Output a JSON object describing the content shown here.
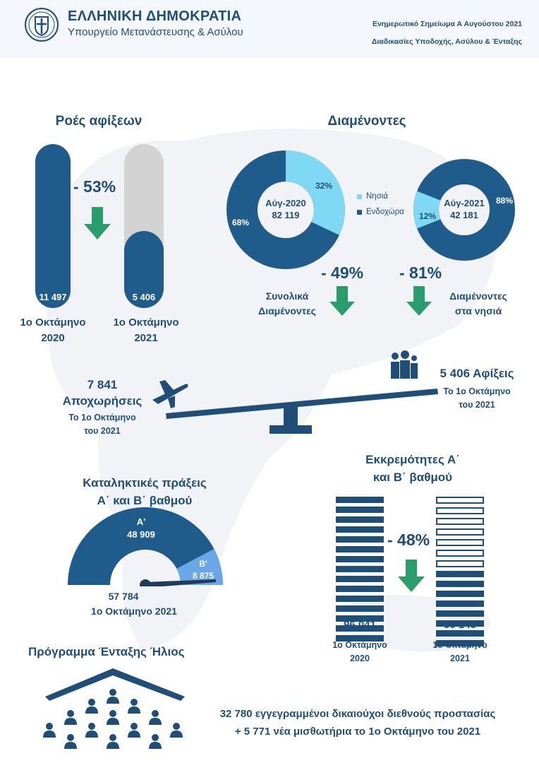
{
  "header": {
    "org_name": "ΕΛΛΗΝΙΚΗ ΔΗΜΟΚΡΑΤΙΑ",
    "ministry": "Υπουργείο Μετανάστευσης & Ασύλου",
    "report_title": "Ενημερωτικό Σημείωμα Α Αυγούστου 2021",
    "report_subtitle": "Διαδικασίες Υποδοχής, Ασύλου & Ένταξης"
  },
  "arrivals": {
    "title": "Ροές αφίξεων",
    "change": "- 53%",
    "bar_2020_value": "11 497",
    "bar_2021_value": "5 406",
    "bar_2021_fraction": 0.47,
    "label_2020_line1": "1ο Οκτάμηνο",
    "label_2020_line2": "2020",
    "label_2021_line1": "1ο Οκτάμηνο",
    "label_2021_line2": "2021"
  },
  "residents": {
    "title": "Διαμένοντες",
    "donut_2020": {
      "label": "Αύγ-2020",
      "total": "82 119",
      "islands_pct": 32,
      "mainland_pct": 68,
      "islands_label": "32%",
      "mainland_label": "68%"
    },
    "donut_2021": {
      "label": "Αύγ-2021",
      "total": "42 181",
      "islands_pct": 12,
      "mainland_pct": 88,
      "islands_label": "12%",
      "mainland_label": "88%"
    },
    "legend_islands": "Νησιά",
    "legend_mainland": "Ενδοχώρα",
    "total_change": "- 49%",
    "total_caption_1": "Συνολικά",
    "total_caption_2": "Διαμένοντες",
    "islands_change": "- 81%",
    "islands_caption_1": "Διαμένοντες",
    "islands_caption_2": "στα νησιά",
    "colors": {
      "islands": "#7fd9f5",
      "mainland": "#1f5c8c"
    }
  },
  "balance": {
    "departures_value": "7 841",
    "departures_label": "Αποχωρήσεις",
    "departures_period_1": "Το 1ο Οκτάμηνο",
    "departures_period_2": "του 2021",
    "arrivals_value": "5 406 Αφίξεις",
    "arrivals_period_1": "Το 1ο Οκτάμηνο",
    "arrivals_period_2": "του 2021"
  },
  "decisions": {
    "title_1": "Καταληκτικές πράξεις",
    "title_2": "Α΄ και Β΄ βαθμού",
    "a_label": "Α'",
    "a_value": "48 909",
    "b_label": "Β'",
    "b_value": "8 875",
    "total": "57 784",
    "period": "1ο Οκτάμηνο 2021"
  },
  "pending": {
    "title_1": "Εκκρεμότητες Α΄",
    "title_2": "και Β΄ βαθμού",
    "change": "- 48%",
    "value_2020": "96 041",
    "value_2021": "50 145",
    "label_2020_1": "1ο Οκτάμηνο",
    "label_2020_2": "2020",
    "label_2021_1": "1ο Οκτάμηνο",
    "label_2021_2": "2021"
  },
  "helios": {
    "title": "Πρόγραμμα Ένταξης Ήλιος",
    "line1": "32 780 εγγεγραμμένοι δικαιούχοι διεθνούς προστασίας",
    "line2": "+ 5 771 νέα μισθωτήρια το 1ο Οκτάμηνο του 2021"
  }
}
